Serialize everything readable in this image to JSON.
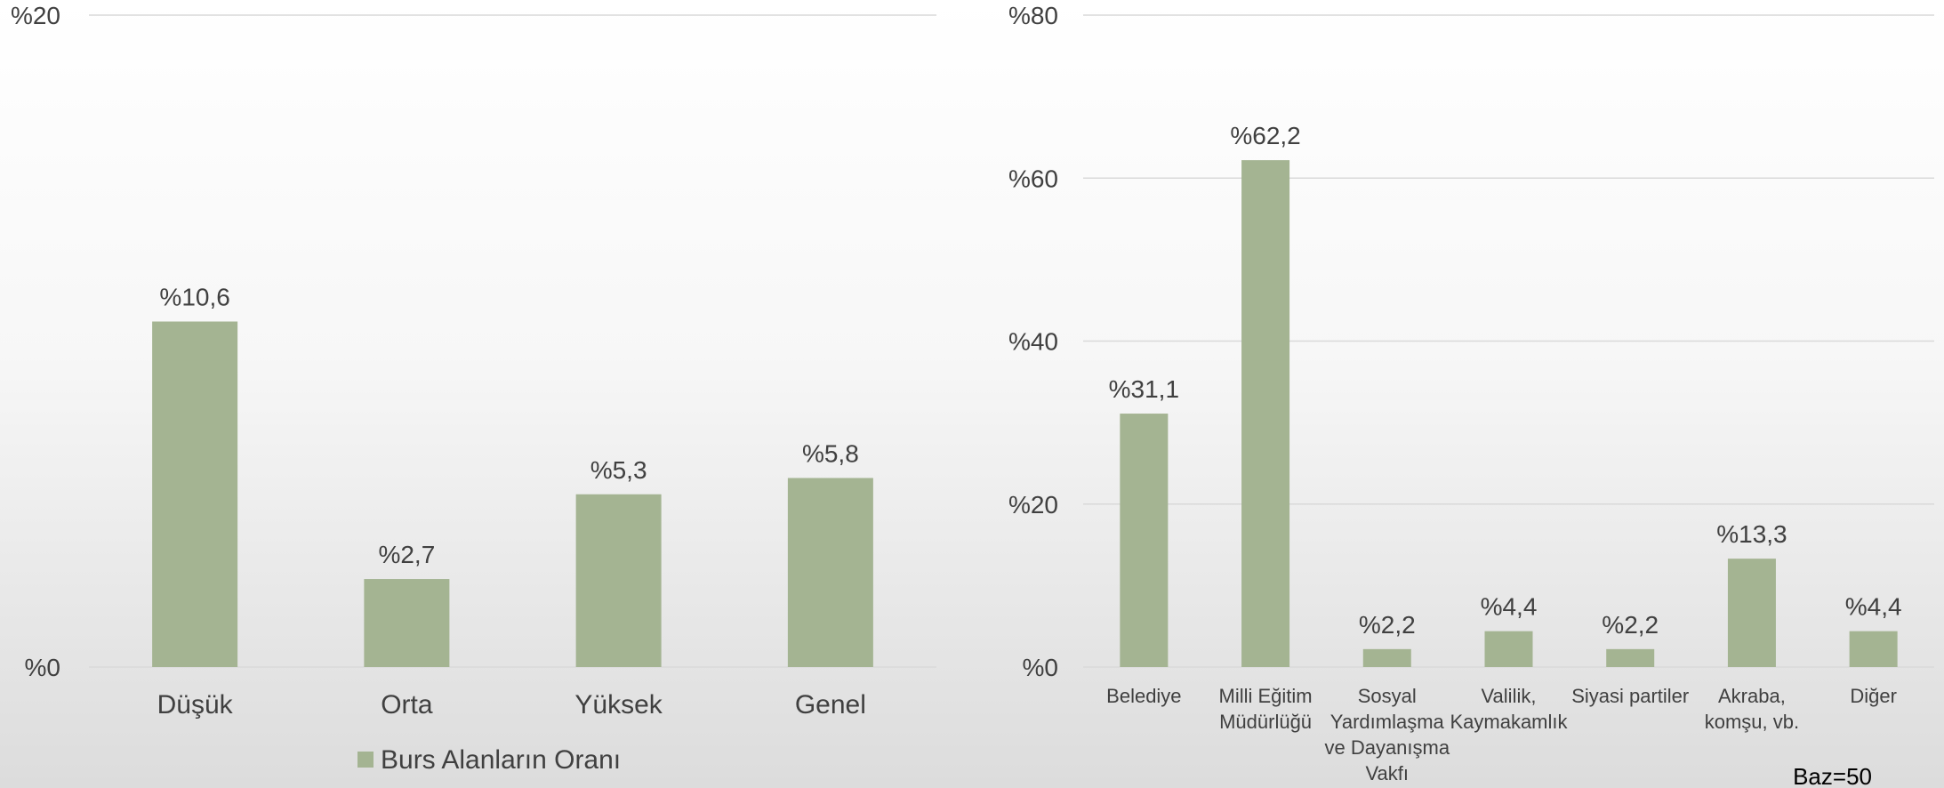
{
  "colors": {
    "bar": "#a4b492",
    "grid": "#d9d9d9",
    "text": "#404040"
  },
  "chart_data": [
    {
      "type": "bar",
      "categories": [
        "Düşük",
        "Orta",
        "Yüksek",
        "Genel"
      ],
      "values": [
        10.6,
        2.7,
        5.3,
        5.8
      ],
      "data_labels": [
        "%10,6",
        "%2,7",
        "%5,3",
        "%5,8"
      ],
      "ylim": [
        0,
        20
      ],
      "ytick_values": [
        0,
        20
      ],
      "ytick_labels": [
        "%0",
        "%20"
      ],
      "grid": true,
      "legend": {
        "position": "bottom",
        "entries": [
          "Burs Alanların Oranı"
        ]
      },
      "title": "",
      "xlabel": "",
      "ylabel": ""
    },
    {
      "type": "bar",
      "categories": [
        "Belediye",
        "Milli Eğitim Müdürlüğü",
        "Sosyal Yardımlaşma ve Dayanışma Vakfı",
        "Valilik, Kaymakamlık",
        "Siyasi partiler",
        "Akraba, komşu, vb.",
        "Diğer"
      ],
      "category_lines": [
        [
          "Belediye"
        ],
        [
          "Milli Eğitim",
          "Müdürlüğü"
        ],
        [
          "Sosyal",
          "Yardımlaşma",
          "ve Dayanışma",
          "Vakfı"
        ],
        [
          "Valilik,",
          "Kaymakamlık"
        ],
        [
          "Siyasi partiler"
        ],
        [
          "Akraba,",
          "komşu, vb."
        ],
        [
          "Diğer"
        ]
      ],
      "values": [
        31.1,
        62.2,
        2.2,
        4.4,
        2.2,
        13.3,
        4.4
      ],
      "data_labels": [
        "%31,1",
        "%62,2",
        "%2,2",
        "%4,4",
        "%2,2",
        "%13,3",
        "%4,4"
      ],
      "ylim": [
        0,
        80
      ],
      "ytick_values": [
        0,
        20,
        40,
        60,
        80
      ],
      "ytick_labels": [
        "%0",
        "%20",
        "%40",
        "%60",
        "%80"
      ],
      "grid": true,
      "note": "Baz=50",
      "title": "",
      "xlabel": "",
      "ylabel": ""
    }
  ]
}
